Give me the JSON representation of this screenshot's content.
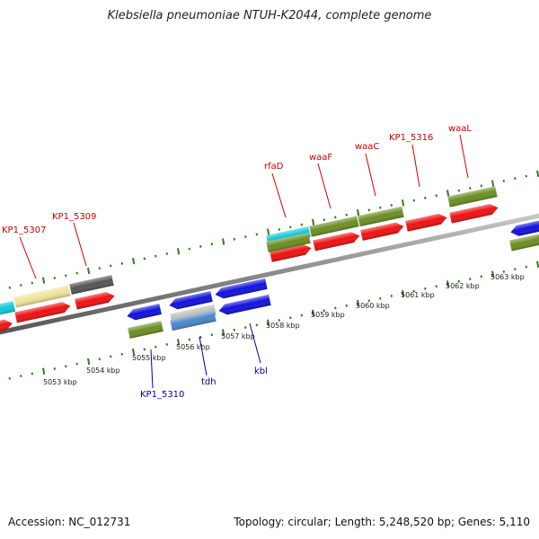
{
  "title": "Klebsiella pneumoniae NTUH-K2044, complete genome",
  "footer": {
    "accession": "Accession: NC_012731",
    "summary": "Topology: circular; Length: 5,248,520 bp; Genes: 5,110"
  },
  "colors": {
    "background": "#ffffff",
    "backbone": "#8a8a8a",
    "tick": "#2e7d1e",
    "label_forward": "#cc0000",
    "label_reverse": "#000099",
    "red": "#ee1111",
    "olive": "#6b8e23",
    "blue": "#1111dd",
    "cyan": "#11c8d8",
    "khaki": "#eee49a",
    "dark_gray": "#555555",
    "silver": "#bdbdbd",
    "steel_blue": "#4a86c8"
  },
  "scale": {
    "tick_labels": [
      "5053 kbp",
      "5054 kbp",
      "5055 kbp",
      "5056 kbp",
      "5057 kbp",
      "5058 kbp",
      "5059 kbp",
      "5060 kbp",
      "5061 kbp",
      "5062 kbp",
      "5063 kbp"
    ]
  },
  "gene_labels": [
    {
      "name": "KP1_5307",
      "strand": "forward"
    },
    {
      "name": "KP1_5309",
      "strand": "forward"
    },
    {
      "name": "rfaD",
      "strand": "forward"
    },
    {
      "name": "waaF",
      "strand": "forward"
    },
    {
      "name": "waaC",
      "strand": "forward"
    },
    {
      "name": "KP1_5316",
      "strand": "forward"
    },
    {
      "name": "waaL",
      "strand": "forward"
    },
    {
      "name": "KP1_5310",
      "strand": "reverse"
    },
    {
      "name": "tdh",
      "strand": "reverse"
    },
    {
      "name": "kbl",
      "strand": "reverse"
    }
  ]
}
